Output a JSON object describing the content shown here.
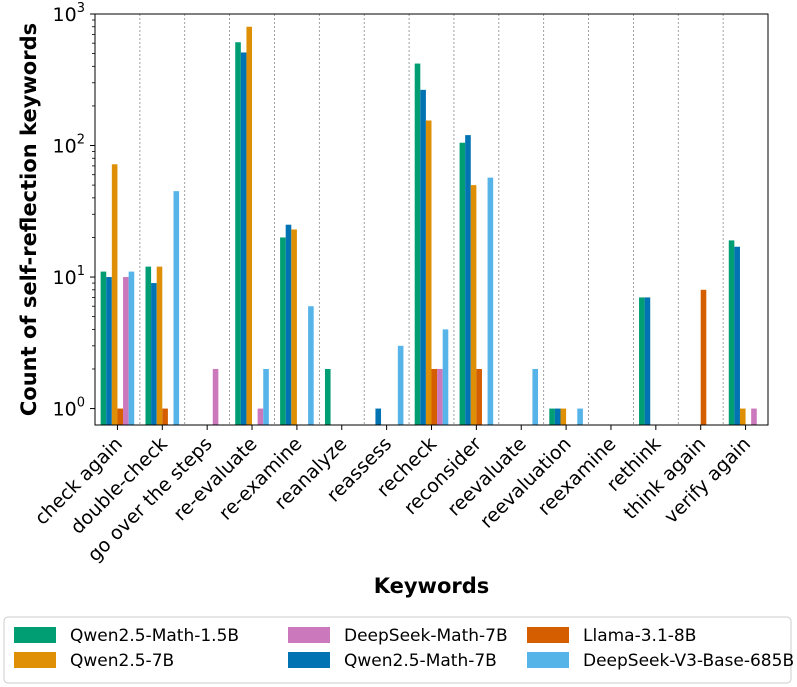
{
  "chart_data": {
    "type": "bar",
    "scale": "log",
    "xlabel": "Keywords",
    "ylabel": "Count of self-reflection keywords",
    "ylim": [
      0.75,
      1000
    ],
    "ytick_labels": [
      {
        "value": 1,
        "base": "10",
        "exp": "0"
      },
      {
        "value": 10,
        "base": "10",
        "exp": "1"
      },
      {
        "value": 100,
        "base": "10",
        "exp": "2"
      },
      {
        "value": 1000,
        "base": "10",
        "exp": "3"
      }
    ],
    "grid": "x-dashed",
    "legend_position": "bottom-center",
    "categories": [
      "check again",
      "double-check",
      "go over the steps",
      "re-evaluate",
      "re-examine",
      "reanalyze",
      "reassess",
      "recheck",
      "reconsider",
      "reevaluate",
      "reevaluation",
      "reexamine",
      "rethink",
      "think again",
      "verify again"
    ],
    "series": [
      {
        "name": "Qwen2.5-Math-1.5B",
        "color": "#029e73",
        "values": [
          11,
          12,
          null,
          610,
          20,
          2,
          null,
          420,
          105,
          null,
          1,
          null,
          7,
          null,
          19
        ]
      },
      {
        "name": "Qwen2.5-Math-7B",
        "color": "#0173b2",
        "values": [
          10,
          9,
          null,
          510,
          25,
          null,
          1,
          265,
          120,
          null,
          1,
          null,
          7,
          null,
          17
        ]
      },
      {
        "name": "Qwen2.5-7B",
        "color": "#de8f05",
        "values": [
          72,
          12,
          null,
          800,
          23,
          null,
          null,
          155,
          50,
          null,
          1,
          null,
          null,
          null,
          1
        ]
      },
      {
        "name": "Llama-3.1-8B",
        "color": "#d55e00",
        "values": [
          1,
          1,
          null,
          null,
          null,
          null,
          null,
          2,
          2,
          null,
          null,
          null,
          null,
          8,
          null
        ]
      },
      {
        "name": "DeepSeek-Math-7B",
        "color": "#cc78bc",
        "values": [
          10,
          null,
          2,
          1,
          null,
          null,
          null,
          2,
          null,
          null,
          null,
          null,
          null,
          null,
          1
        ]
      },
      {
        "name": "DeepSeek-V3-Base-685B",
        "color": "#56b4e9",
        "values": [
          11,
          45,
          null,
          2,
          6,
          null,
          3,
          4,
          57,
          2,
          1,
          null,
          null,
          null,
          null
        ]
      }
    ],
    "legend_order": [
      0,
      2,
      4,
      1,
      3,
      5
    ]
  }
}
